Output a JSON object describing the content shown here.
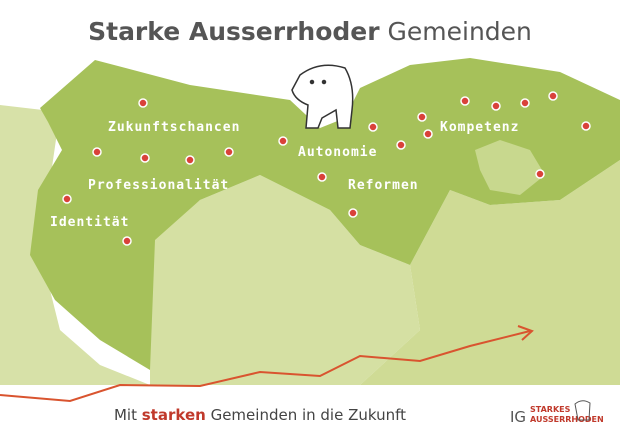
{
  "header": {
    "title_bold": "Starke Ausserrhoder",
    "title_rest": "Gemeinden"
  },
  "map": {
    "labels": [
      "Zukunftschancen",
      "Professionalität",
      "Identität",
      "Autonomie",
      "Reformen",
      "Kompetenz"
    ]
  },
  "footer": {
    "slogan_start": "Mit",
    "slogan_bold": "starken",
    "slogan_end": "Gemeinden in die Zukunft"
  },
  "logo": {
    "prefix": "IG",
    "line1": "STARKES",
    "line2": "AUSSERRHODEN"
  }
}
